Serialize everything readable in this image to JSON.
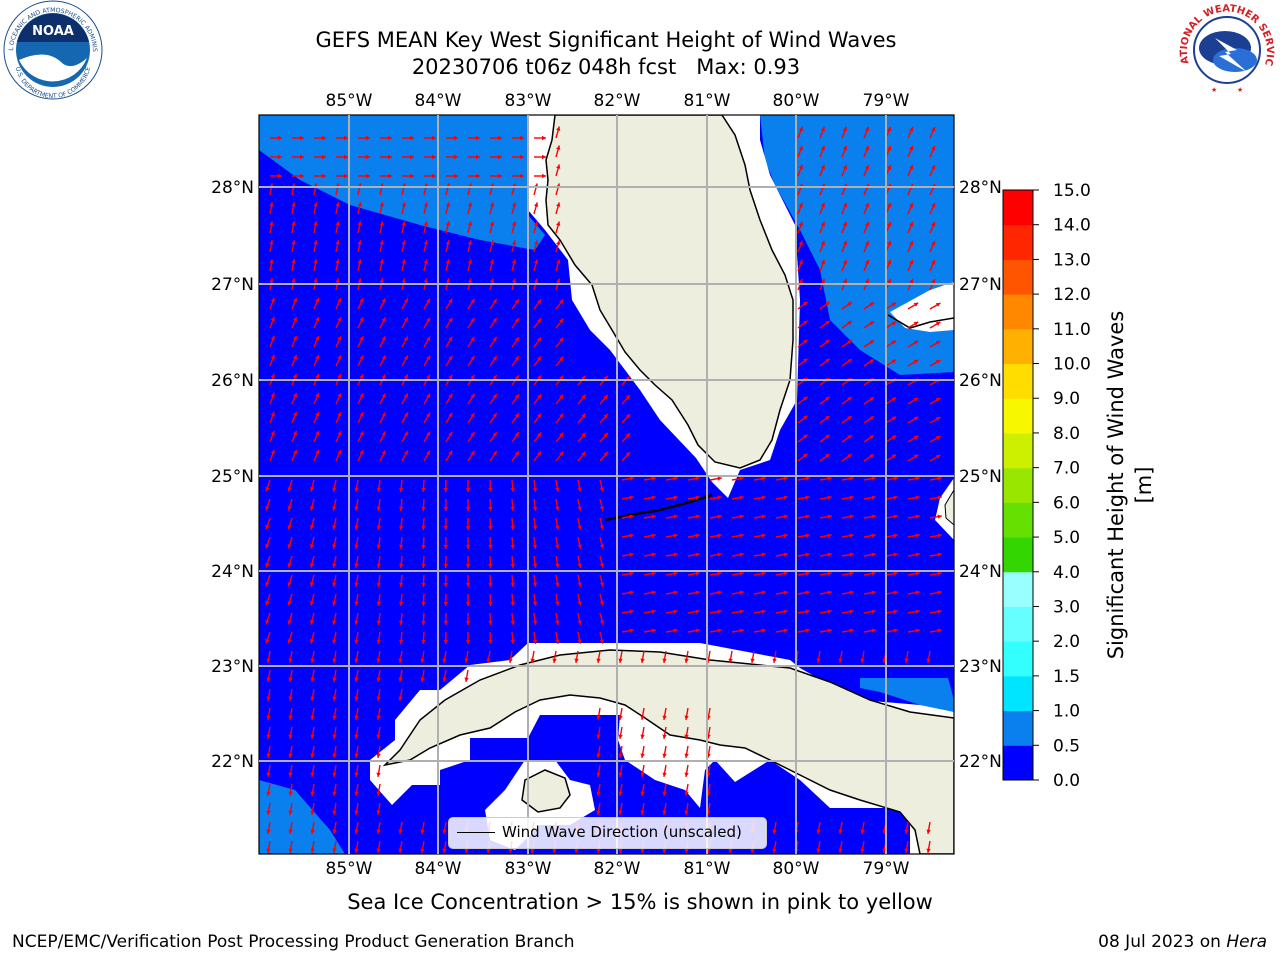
{
  "title_line1": "GEFS MEAN Key West Significant Height of Wind Waves",
  "title_line2": "20230706 t06z 048h fcst   Max: 0.93",
  "lon_labels": [
    "85°W",
    "84°W",
    "83°W",
    "82°W",
    "81°W",
    "80°W",
    "79°W"
  ],
  "lat_labels": [
    "28°N",
    "27°N",
    "26°N",
    "25°N",
    "24°N",
    "23°N",
    "22°N"
  ],
  "legend_label": "Wind Wave Direction (unscaled)",
  "colorbar": {
    "title": "Significant Height of Wind Waves [m]",
    "ticks": [
      "15.0",
      "14.0",
      "13.0",
      "12.0",
      "11.0",
      "10.0",
      "9.0",
      "8.0",
      "7.0",
      "6.0",
      "5.0",
      "4.0",
      "3.0",
      "2.0",
      "1.5",
      "1.0",
      "0.5",
      "0.0"
    ],
    "colors": [
      "#0000ff",
      "#0a7fee",
      "#00e5ff",
      "#33ffff",
      "#66ffff",
      "#99ffff",
      "#4cf07a",
      "#00e800",
      "#33d600",
      "#66e000",
      "#99e600",
      "#ccf000",
      "#f7f700",
      "#ffdd00",
      "#ffb000",
      "#ff8800",
      "#ff5500",
      "#ff2600",
      "#ff0000"
    ]
  },
  "map": {
    "region": "Key West",
    "max_value": 0.93,
    "sea_color": "#0000ff",
    "elevated_wave_color": "#0a7fee",
    "land_color": "#eeeedf",
    "arrow_color": "#ff0000"
  },
  "note": "Sea Ice Concentration > 15% is shown in pink to yellow",
  "footer_left": "NCEP/EMC/Verification Post Processing Product Generation Branch",
  "footer_date": "08 Jul 2023 on",
  "footer_host": "Hera",
  "logos": {
    "noaa_text": "NOAA",
    "noaa_ring_top": "NATIONAL OCEANIC AND ATMOSPHERIC ADMINISTRATION",
    "noaa_ring_bottom": "U.S. DEPARTMENT OF COMMERCE",
    "nws_ring": "NATIONAL WEATHER SERVICE"
  }
}
